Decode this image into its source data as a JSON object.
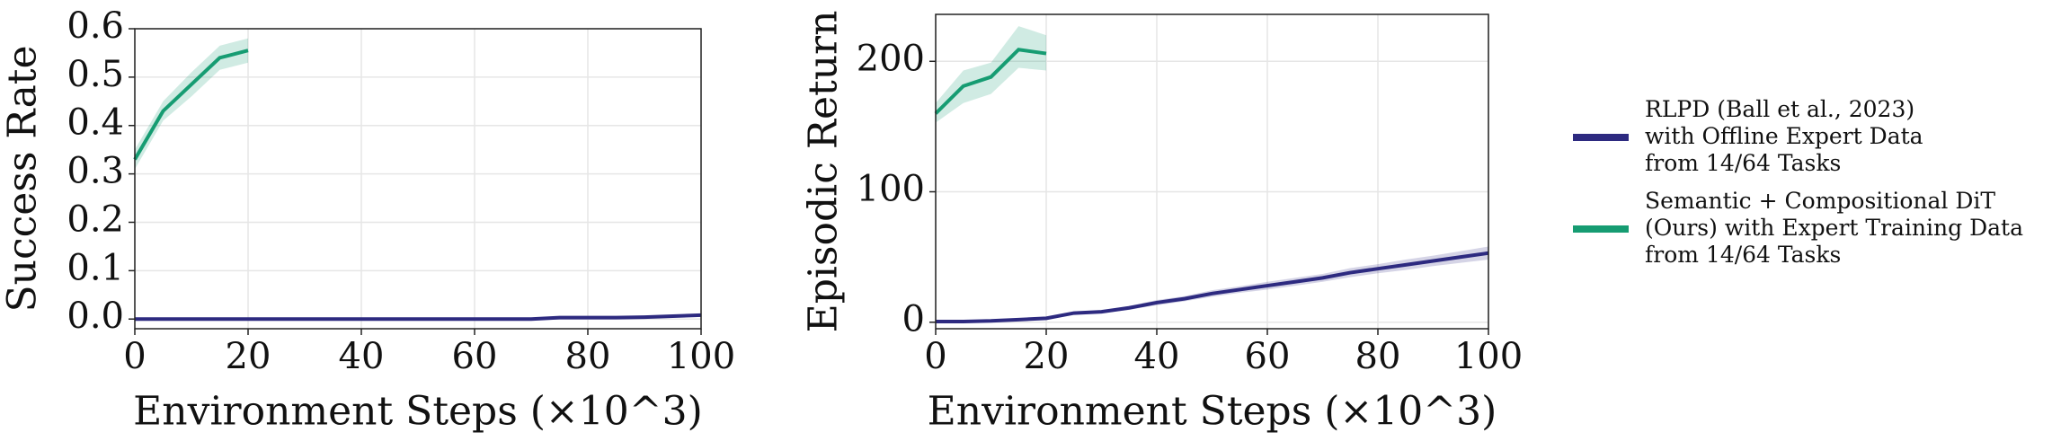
{
  "chart_data": [
    {
      "type": "line",
      "xlabel": "Environment Steps (×10^3)",
      "ylabel": "Success Rate",
      "xlim": [
        0,
        100
      ],
      "xticks": [
        0,
        20,
        40,
        60,
        80,
        100
      ],
      "ylim": [
        -0.02,
        0.6
      ],
      "yticks": [
        {
          "value": 0,
          "label": "0.0"
        },
        0.1,
        0.2,
        0.3,
        0.4,
        0.5,
        0.6
      ],
      "grid": true,
      "series": [
        {
          "name": "RLPD (Ball et al., 2023)\nwith Offline Expert Data\nfrom 14/64 Tasks",
          "color": "#2d2a80",
          "x": [
            0,
            5,
            10,
            15,
            20,
            25,
            30,
            35,
            40,
            45,
            50,
            55,
            60,
            65,
            70,
            75,
            80,
            85,
            90,
            95,
            100
          ],
          "values": [
            0,
            0,
            0,
            0,
            0,
            0,
            0,
            0,
            0,
            0,
            0,
            0,
            0,
            0,
            0,
            0.003,
            0.003,
            0.003,
            0.004,
            0.006,
            0.008
          ]
        },
        {
          "name": "Semantic + Compositional DiT\n(Ours) with Expert Training Data\nfrom 14/64 Tasks",
          "color": "#169c72",
          "x": [
            0,
            5,
            10,
            15,
            20
          ],
          "values": [
            0.33,
            0.43,
            0.485,
            0.54,
            0.555
          ],
          "lower": [
            0.31,
            0.41,
            0.46,
            0.515,
            0.53
          ],
          "upper": [
            0.35,
            0.45,
            0.51,
            0.565,
            0.58
          ]
        }
      ]
    },
    {
      "type": "line",
      "xlabel": "Environment Steps (×10^3)",
      "ylabel": "Episodic Return",
      "xlim": [
        0,
        100
      ],
      "xticks": [
        0,
        20,
        40,
        60,
        80,
        100
      ],
      "ylim": [
        -5,
        236
      ],
      "yticks": [
        0,
        100,
        200
      ],
      "grid": true,
      "series": [
        {
          "name": "RLPD (Ball et al., 2023)\nwith Offline Expert Data\nfrom 14/64 Tasks",
          "color": "#2d2a80",
          "x": [
            0,
            5,
            10,
            15,
            20,
            25,
            30,
            35,
            40,
            45,
            50,
            55,
            60,
            65,
            70,
            75,
            80,
            85,
            90,
            95,
            100
          ],
          "values": [
            0.5,
            0.5,
            1,
            2,
            3,
            7,
            8,
            11,
            15,
            18,
            22,
            25,
            28,
            31,
            34,
            38,
            41,
            44,
            47,
            50,
            53
          ],
          "lower": [
            0,
            0,
            0.5,
            1.5,
            2.5,
            6,
            7,
            9.5,
            13,
            16,
            19.5,
            22.5,
            25,
            28,
            31,
            34.5,
            37.5,
            40,
            43,
            45.5,
            48
          ],
          "upper": [
            1,
            1,
            1.5,
            2.5,
            3.5,
            8,
            9,
            12.5,
            17,
            20,
            24.5,
            27.5,
            31,
            34,
            37,
            41.5,
            44.5,
            48,
            51,
            54.5,
            58
          ]
        },
        {
          "name": "Semantic + Compositional DiT\n(Ours) with Expert Training Data\nfrom 14/64 Tasks",
          "color": "#169c72",
          "x": [
            0,
            5,
            10,
            15,
            20
          ],
          "values": [
            160,
            181,
            188,
            209,
            206
          ],
          "lower": [
            153,
            168,
            175,
            195,
            193
          ],
          "upper": [
            168,
            193,
            199,
            227,
            220
          ]
        }
      ]
    }
  ]
}
